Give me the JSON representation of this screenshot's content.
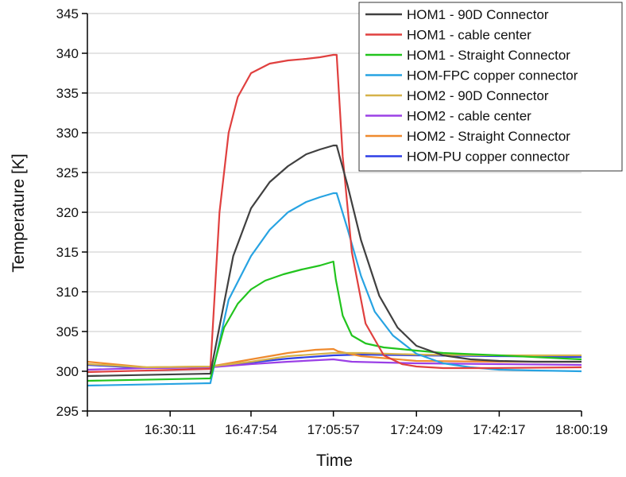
{
  "chart_data": {
    "type": "line",
    "xlabel": "Time",
    "ylabel": "Temperature [K]",
    "ylim": [
      295,
      345
    ],
    "yticks": [
      295,
      300,
      305,
      310,
      315,
      320,
      325,
      330,
      335,
      340,
      345
    ],
    "x_start": "16:12:03",
    "x_end": "18:00:19",
    "xticks": [
      "16:30:11",
      "16:47:54",
      "17:05:57",
      "17:24:09",
      "17:42:17",
      "18:00:19"
    ],
    "grid": "horizontal",
    "legend_position": "top-right",
    "series": [
      {
        "name": "HOM1 - 90D Connector",
        "color": "#404040",
        "x": [
          "16:12:03",
          "16:39:00",
          "16:44:00",
          "16:47:54",
          "16:52:00",
          "16:56:00",
          "17:00:00",
          "17:03:00",
          "17:05:57",
          "17:06:40",
          "17:09:00",
          "17:12:00",
          "17:16:00",
          "17:20:00",
          "17:24:09",
          "17:30:00",
          "17:36:00",
          "17:42:17",
          "17:50:00",
          "18:00:19"
        ],
        "values": [
          299.4,
          299.7,
          314.5,
          320.5,
          323.8,
          325.8,
          327.3,
          327.9,
          328.4,
          328.4,
          323.5,
          316.5,
          309.5,
          305.5,
          303.2,
          302.0,
          301.5,
          301.3,
          301.2,
          301.2
        ]
      },
      {
        "name": "HOM1 - cable center",
        "color": "#e0403f",
        "x": [
          "16:12:03",
          "16:39:00",
          "16:41:00",
          "16:43:00",
          "16:45:00",
          "16:47:54",
          "16:52:00",
          "16:56:00",
          "17:00:00",
          "17:03:00",
          "17:05:57",
          "17:06:40",
          "17:08:00",
          "17:10:00",
          "17:13:00",
          "17:17:00",
          "17:21:00",
          "17:24:09",
          "17:30:00",
          "17:40:00",
          "18:00:19"
        ],
        "values": [
          299.9,
          300.3,
          320.0,
          330.0,
          334.5,
          337.5,
          338.7,
          339.1,
          339.3,
          339.5,
          339.8,
          339.8,
          327.0,
          315.0,
          306.0,
          302.0,
          300.9,
          300.6,
          300.4,
          300.4,
          300.5
        ]
      },
      {
        "name": "HOM1 - Straight Connector",
        "color": "#22c41e",
        "x": [
          "16:12:03",
          "16:39:00",
          "16:42:00",
          "16:45:00",
          "16:47:54",
          "16:51:00",
          "16:55:00",
          "16:59:00",
          "17:03:00",
          "17:05:57",
          "17:06:30",
          "17:08:00",
          "17:10:00",
          "17:13:00",
          "17:17:00",
          "17:24:09",
          "17:30:00",
          "17:42:17",
          "18:00:19"
        ],
        "values": [
          298.8,
          299.1,
          305.5,
          308.5,
          310.3,
          311.4,
          312.2,
          312.8,
          313.3,
          313.8,
          311.5,
          307.0,
          304.5,
          303.5,
          303.0,
          302.6,
          302.3,
          302.0,
          301.5
        ]
      },
      {
        "name": "HOM-FPC copper connector",
        "color": "#27a3e2",
        "x": [
          "16:12:03",
          "16:39:00",
          "16:43:00",
          "16:47:54",
          "16:52:00",
          "16:56:00",
          "17:00:00",
          "17:03:00",
          "17:05:57",
          "17:06:40",
          "17:09:00",
          "17:12:00",
          "17:15:00",
          "17:19:00",
          "17:24:09",
          "17:30:00",
          "17:36:00",
          "17:42:17",
          "17:50:00",
          "18:00:19"
        ],
        "values": [
          298.2,
          298.5,
          309.0,
          314.5,
          317.8,
          320.0,
          321.3,
          321.9,
          322.4,
          322.4,
          318.0,
          312.0,
          307.5,
          304.5,
          302.2,
          301.0,
          300.5,
          300.2,
          300.1,
          300.0
        ]
      },
      {
        "name": "HOM2 - 90D Connector",
        "color": "#d6b24a",
        "x": [
          "16:12:03",
          "16:25:00",
          "16:39:00",
          "16:47:54",
          "16:56:00",
          "17:05:57",
          "17:12:00",
          "17:24:09",
          "17:42:17",
          "18:00:19"
        ],
        "values": [
          300.9,
          300.5,
          300.6,
          301.2,
          301.9,
          302.3,
          302.3,
          302.1,
          302.0,
          302.0
        ]
      },
      {
        "name": "HOM2 - cable center",
        "color": "#9b40e6",
        "x": [
          "16:12:03",
          "16:25:00",
          "16:39:00",
          "16:47:54",
          "16:56:00",
          "17:05:57",
          "17:10:00",
          "17:24:09",
          "17:42:17",
          "18:00:19"
        ],
        "values": [
          300.2,
          300.4,
          300.5,
          300.9,
          301.2,
          301.5,
          301.2,
          301.0,
          300.9,
          300.8
        ]
      },
      {
        "name": "HOM2 - Straight Connector",
        "color": "#ef8a2e",
        "x": [
          "16:12:03",
          "16:25:00",
          "16:39:00",
          "16:47:54",
          "16:56:00",
          "17:02:00",
          "17:05:57",
          "17:07:00",
          "17:12:00",
          "17:24:09",
          "17:42:17",
          "18:00:19"
        ],
        "values": [
          301.2,
          300.5,
          300.6,
          301.5,
          302.3,
          302.7,
          302.8,
          302.5,
          301.9,
          301.3,
          301.2,
          301.2
        ]
      },
      {
        "name": "HOM-PU copper connector",
        "color": "#2f3fe6",
        "x": [
          "16:12:03",
          "16:25:00",
          "16:39:00",
          "16:47:54",
          "16:56:00",
          "17:05:57",
          "17:12:00",
          "17:24:09",
          "17:42:17",
          "18:00:19"
        ],
        "values": [
          300.8,
          300.4,
          300.5,
          301.1,
          301.6,
          302.0,
          302.1,
          302.0,
          301.9,
          301.8
        ]
      }
    ]
  }
}
